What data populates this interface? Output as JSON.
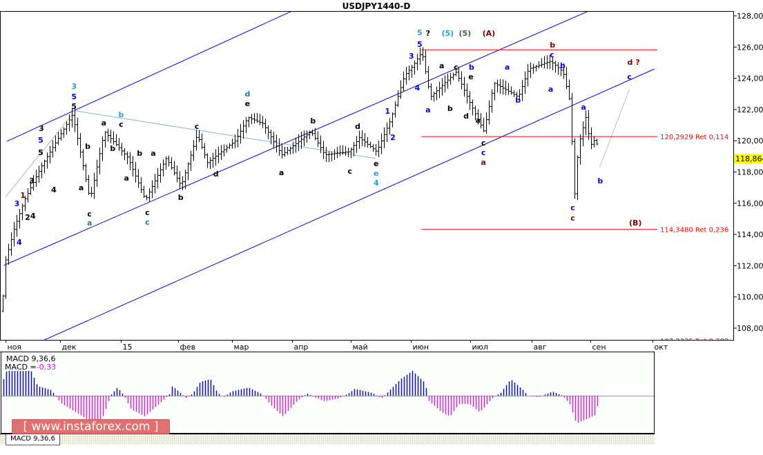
{
  "window": {
    "title": "USDJPY1440-D"
  },
  "tab": {
    "label": "MACD 9,36,6"
  },
  "watermark": {
    "text": "[ www.instaforex.com ]"
  },
  "chart_data": {
    "type": "ohlc",
    "title": "USDJPY1440-D",
    "price_axis": {
      "min": 107.3,
      "max": 128.3,
      "ticks": [
        {
          "v": 128,
          "label": "128,000"
        },
        {
          "v": 126,
          "label": "126,000"
        },
        {
          "v": 124,
          "label": "124,000"
        },
        {
          "v": 122,
          "label": "122,000"
        },
        {
          "v": 120,
          "label": "120,000"
        },
        {
          "v": 118,
          "label": "118,000"
        },
        {
          "v": 116,
          "label": "116,000"
        },
        {
          "v": 114,
          "label": "114,000"
        },
        {
          "v": 112,
          "label": "112,000"
        },
        {
          "v": 110,
          "label": "110,000"
        },
        {
          "v": 108,
          "label": "108,000"
        }
      ]
    },
    "time_axis": {
      "unit": "months since Nov 2014",
      "ticks": [
        {
          "m": 0,
          "label": "ноя"
        },
        {
          "m": 0.92,
          "label": "дек"
        },
        {
          "m": 1.94,
          "label": "15"
        },
        {
          "m": 2.9,
          "label": "фев"
        },
        {
          "m": 3.8,
          "label": "мар"
        },
        {
          "m": 4.81,
          "label": "апр"
        },
        {
          "m": 5.79,
          "label": "май"
        },
        {
          "m": 6.8,
          "label": "июн"
        },
        {
          "m": 7.8,
          "label": "июл"
        },
        {
          "m": 8.83,
          "label": "авг"
        },
        {
          "m": 9.81,
          "label": "сен"
        },
        {
          "m": 10.86,
          "label": "окт"
        }
      ]
    },
    "current_price": {
      "value": 118.864,
      "label": "118,864",
      "color": "#ffff00"
    },
    "price_path": [
      [
        -0.06,
        109.1
      ],
      [
        -0.03,
        112.0
      ],
      [
        0.14,
        114.4
      ],
      [
        0.31,
        116.2
      ],
      [
        0.6,
        118.4
      ],
      [
        1.12,
        121.7
      ],
      [
        1.41,
        116.2
      ],
      [
        1.65,
        120.6
      ],
      [
        2.05,
        118.9
      ],
      [
        2.34,
        116.2
      ],
      [
        2.69,
        118.9
      ],
      [
        2.94,
        117.1
      ],
      [
        3.21,
        120.4
      ],
      [
        3.38,
        118.6
      ],
      [
        3.85,
        120.0
      ],
      [
        4.06,
        121.5
      ],
      [
        4.31,
        121.1
      ],
      [
        4.63,
        119.1
      ],
      [
        5.12,
        120.6
      ],
      [
        5.35,
        119.1
      ],
      [
        5.76,
        119.3
      ],
      [
        5.93,
        120.2
      ],
      [
        6.22,
        119.3
      ],
      [
        6.45,
        121.3
      ],
      [
        6.69,
        124.2
      ],
      [
        6.83,
        124.8
      ],
      [
        6.98,
        125.7
      ],
      [
        7.12,
        122.8
      ],
      [
        7.55,
        124.4
      ],
      [
        7.79,
        122.4
      ],
      [
        8.02,
        120.6
      ],
      [
        8.19,
        123.7
      ],
      [
        8.6,
        122.8
      ],
      [
        8.77,
        124.6
      ],
      [
        9.14,
        125.1
      ],
      [
        9.35,
        124.4
      ],
      [
        9.47,
        122.4
      ],
      [
        9.54,
        116.3
      ],
      [
        9.57,
        118.4
      ],
      [
        9.64,
        120.2
      ],
      [
        9.73,
        121.5
      ],
      [
        9.81,
        119.7
      ],
      [
        9.9,
        120.2
      ],
      [
        9.95,
        118.86
      ]
    ],
    "trendlines": [
      {
        "color": "#0000ff",
        "points": [
          [
            0.02,
            119.96
          ],
          [
            4.83,
            128.35
          ]
        ]
      },
      {
        "color": "#0000ff",
        "points": [
          [
            -0.03,
            112.02
          ],
          [
            9.81,
            128.35
          ]
        ]
      },
      {
        "color": "#0000ff",
        "points": [
          [
            0.6,
            107.16
          ],
          [
            10.89,
            124.6
          ]
        ]
      },
      {
        "color": "#7fb8d8",
        "points": [
          [
            1.12,
            121.95
          ],
          [
            6.22,
            118.86
          ]
        ]
      },
      {
        "color": "#b0b0b0",
        "points": [
          [
            0.0,
            116.4
          ],
          [
            1.12,
            121.7
          ]
        ]
      },
      {
        "color": "#c0c0c0",
        "points": [
          [
            9.97,
            118.3
          ],
          [
            10.47,
            123.3
          ]
        ]
      }
    ],
    "levels": [
      {
        "price": 125.85,
        "from_m": 6.98,
        "label": ""
      },
      {
        "price": 120.2929,
        "from_m": 6.98,
        "label": "120,2929 Ret 0,114"
      },
      {
        "price": 114.348,
        "from_m": 6.98,
        "label": "114,3480 Ret 0,236"
      },
      {
        "price": 107.2335,
        "from_m": 6.98,
        "label": "107,2335 Ret 0,382"
      }
    ],
    "level_color": "#ff0000",
    "wave_labels": [
      [
        1.15,
        123.5,
        "3",
        "#2a9fd6"
      ],
      [
        1.15,
        122.83,
        "5",
        "#0000ff"
      ],
      [
        1.15,
        122.26,
        "5",
        "#000000"
      ],
      [
        0.6,
        120.8,
        "3",
        "#000000"
      ],
      [
        0.59,
        120.05,
        "5",
        "#0000ff"
      ],
      [
        0.59,
        119.26,
        "5",
        "#000000"
      ],
      [
        0.19,
        115.99,
        "3",
        "#0000ff"
      ],
      [
        0.29,
        116.52,
        "1",
        "#800000"
      ],
      [
        0.44,
        117.45,
        "3",
        "#000000"
      ],
      [
        0.37,
        115.11,
        "2",
        "#000000"
      ],
      [
        0.46,
        115.2,
        "4",
        "#000000"
      ],
      [
        0.23,
        113.52,
        "4",
        "#0000ff"
      ],
      [
        0.81,
        116.87,
        "4",
        "#000000"
      ],
      [
        1.27,
        117.01,
        "a",
        "#000000"
      ],
      [
        1.41,
        115.33,
        "c",
        "#000000"
      ],
      [
        1.41,
        114.75,
        "a",
        "#1a7f9f"
      ],
      [
        1.38,
        119.66,
        "b",
        "#000000"
      ],
      [
        1.65,
        121.16,
        "a",
        "#000000"
      ],
      [
        1.94,
        121.69,
        "b",
        "#2a9fd6"
      ],
      [
        1.94,
        121.07,
        "c",
        "#000000"
      ],
      [
        1.8,
        119.52,
        "b",
        "#000000"
      ],
      [
        2.25,
        119.21,
        "b",
        "#000000"
      ],
      [
        2.03,
        117.62,
        "a",
        "#000000"
      ],
      [
        2.48,
        119.21,
        "a",
        "#000000"
      ],
      [
        2.38,
        115.42,
        "c",
        "#000000"
      ],
      [
        2.38,
        114.89,
        "c",
        "#1a7f9f"
      ],
      [
        2.94,
        116.39,
        "b",
        "#000000"
      ],
      [
        3.21,
        120.94,
        "c",
        "#000000"
      ],
      [
        3.53,
        117.89,
        "d",
        "#000000"
      ],
      [
        4.06,
        123.01,
        "d",
        "#1a7f9f"
      ],
      [
        4.06,
        122.39,
        "e",
        "#000000"
      ],
      [
        5.16,
        121.29,
        "b",
        "#000000"
      ],
      [
        4.63,
        117.98,
        "a",
        "#000000"
      ],
      [
        5.78,
        118.07,
        "c",
        "#000000"
      ],
      [
        5.91,
        120.94,
        "d",
        "#000000"
      ],
      [
        6.22,
        118.55,
        "e",
        "#000000"
      ],
      [
        6.22,
        117.98,
        "e",
        "#2a9fd6"
      ],
      [
        6.22,
        117.4,
        "4",
        "#2a9fd6"
      ],
      [
        6.41,
        121.91,
        "1",
        "#0000ff"
      ],
      [
        6.5,
        120.23,
        "2",
        "#0000ff"
      ],
      [
        6.81,
        125.44,
        "3",
        "#0000ff"
      ],
      [
        6.95,
        126.19,
        "5",
        "#0000ff"
      ],
      [
        6.95,
        126.94,
        "5",
        "#2a9fd6"
      ],
      [
        7.09,
        126.9,
        "?",
        "#000000"
      ],
      [
        7.42,
        126.9,
        "(5)",
        "#2a9fd6"
      ],
      [
        7.71,
        126.9,
        "(5)",
        "#2d6a2d"
      ],
      [
        8.11,
        126.9,
        "(A)",
        "#800000"
      ],
      [
        6.91,
        123.41,
        "4",
        "#0000ff"
      ],
      [
        7.09,
        122.0,
        "a",
        "#0000ff"
      ],
      [
        7.32,
        124.82,
        "a",
        "#000000"
      ],
      [
        7.56,
        124.73,
        "c",
        "#000000"
      ],
      [
        7.81,
        124.11,
        "e",
        "#000000"
      ],
      [
        7.82,
        124.6,
        "b",
        "#0000ff"
      ],
      [
        7.46,
        122.08,
        "b",
        "#000000"
      ],
      [
        7.73,
        121.6,
        "d",
        "#000000"
      ],
      [
        7.93,
        121.33,
        "a",
        "#000000"
      ],
      [
        8.02,
        119.88,
        "c",
        "#000000"
      ],
      [
        8.02,
        119.26,
        "c",
        "#0000ff"
      ],
      [
        8.02,
        118.73,
        "a",
        "#800000"
      ],
      [
        8.42,
        124.73,
        "a",
        "#0000ff"
      ],
      [
        8.6,
        122.61,
        "b",
        "#0000ff"
      ],
      [
        9.18,
        126.15,
        "b",
        "#800000"
      ],
      [
        9.17,
        125.7,
        "c",
        "#0000ff"
      ],
      [
        9.35,
        124.82,
        "b",
        "#0000ff"
      ],
      [
        9.15,
        123.32,
        "a",
        "#0000ff"
      ],
      [
        9.7,
        122.17,
        "a",
        "#0000ff"
      ],
      [
        9.52,
        115.73,
        "c",
        "#0000ff"
      ],
      [
        9.52,
        115.06,
        "c",
        "#800000"
      ],
      [
        9.98,
        117.45,
        "b",
        "#0000ff"
      ],
      [
        10.54,
        125.04,
        "d ?",
        "#800000"
      ],
      [
        10.47,
        124.11,
        "c",
        "#0000ff"
      ],
      [
        10.57,
        114.75,
        "(B)",
        "#800000"
      ]
    ],
    "macd": {
      "title": "MACD 9,36,6",
      "value_label": "MACD =",
      "value": "-0,33",
      "value_color": "#ff00ff",
      "positive_color": "#0000ff",
      "negative_color": "#ff00ff",
      "histogram": [
        [
          -0.03,
          0.6
        ],
        [
          0.02,
          0.9
        ],
        [
          0.43,
          0.9
        ],
        [
          0.49,
          0.6
        ],
        [
          0.54,
          0.35
        ],
        [
          0.78,
          0.2
        ],
        [
          0.83,
          0
        ],
        [
          0.95,
          -0.3
        ],
        [
          1.07,
          -0.45
        ],
        [
          1.41,
          -0.9
        ],
        [
          1.59,
          -1.0
        ],
        [
          1.7,
          -0.4
        ],
        [
          1.76,
          0
        ],
        [
          1.88,
          0.3
        ],
        [
          1.99,
          0
        ],
        [
          2.11,
          -0.5
        ],
        [
          2.34,
          -0.75
        ],
        [
          2.63,
          -0.2
        ],
        [
          2.75,
          0.05
        ],
        [
          2.8,
          0.35
        ],
        [
          2.94,
          0.1
        ],
        [
          3.04,
          -0.1
        ],
        [
          3.15,
          0.1
        ],
        [
          3.27,
          0.5
        ],
        [
          3.44,
          0.6
        ],
        [
          3.56,
          0.1
        ],
        [
          3.67,
          -0.05
        ],
        [
          3.79,
          0.15
        ],
        [
          4.08,
          0.3
        ],
        [
          4.31,
          0.05
        ],
        [
          4.48,
          -0.4
        ],
        [
          4.66,
          -0.75
        ],
        [
          4.89,
          -0.2
        ],
        [
          5.06,
          0.08
        ],
        [
          5.18,
          -0.05
        ],
        [
          5.35,
          -0.2
        ],
        [
          5.59,
          -0.1
        ],
        [
          5.77,
          0.1
        ],
        [
          5.86,
          0.25
        ],
        [
          6.16,
          0.1
        ],
        [
          6.31,
          -0.1
        ],
        [
          6.45,
          0.2
        ],
        [
          6.63,
          0.6
        ],
        [
          6.83,
          0.9
        ],
        [
          7.05,
          0.45
        ],
        [
          7.09,
          -0.15
        ],
        [
          7.32,
          -0.6
        ],
        [
          7.46,
          -0.75
        ],
        [
          7.61,
          -0.3
        ],
        [
          7.79,
          -0.3
        ],
        [
          7.96,
          -0.6
        ],
        [
          8.19,
          -0.05
        ],
        [
          8.31,
          0.1
        ],
        [
          8.48,
          0.6
        ],
        [
          8.69,
          0.2
        ],
        [
          8.77,
          0
        ],
        [
          8.95,
          -0.05
        ],
        [
          9.18,
          0.15
        ],
        [
          9.35,
          0
        ],
        [
          9.47,
          -0.3
        ],
        [
          9.58,
          -1.0
        ],
        [
          9.7,
          -0.9
        ],
        [
          9.9,
          -0.7
        ],
        [
          9.94,
          -0.33
        ]
      ]
    }
  }
}
